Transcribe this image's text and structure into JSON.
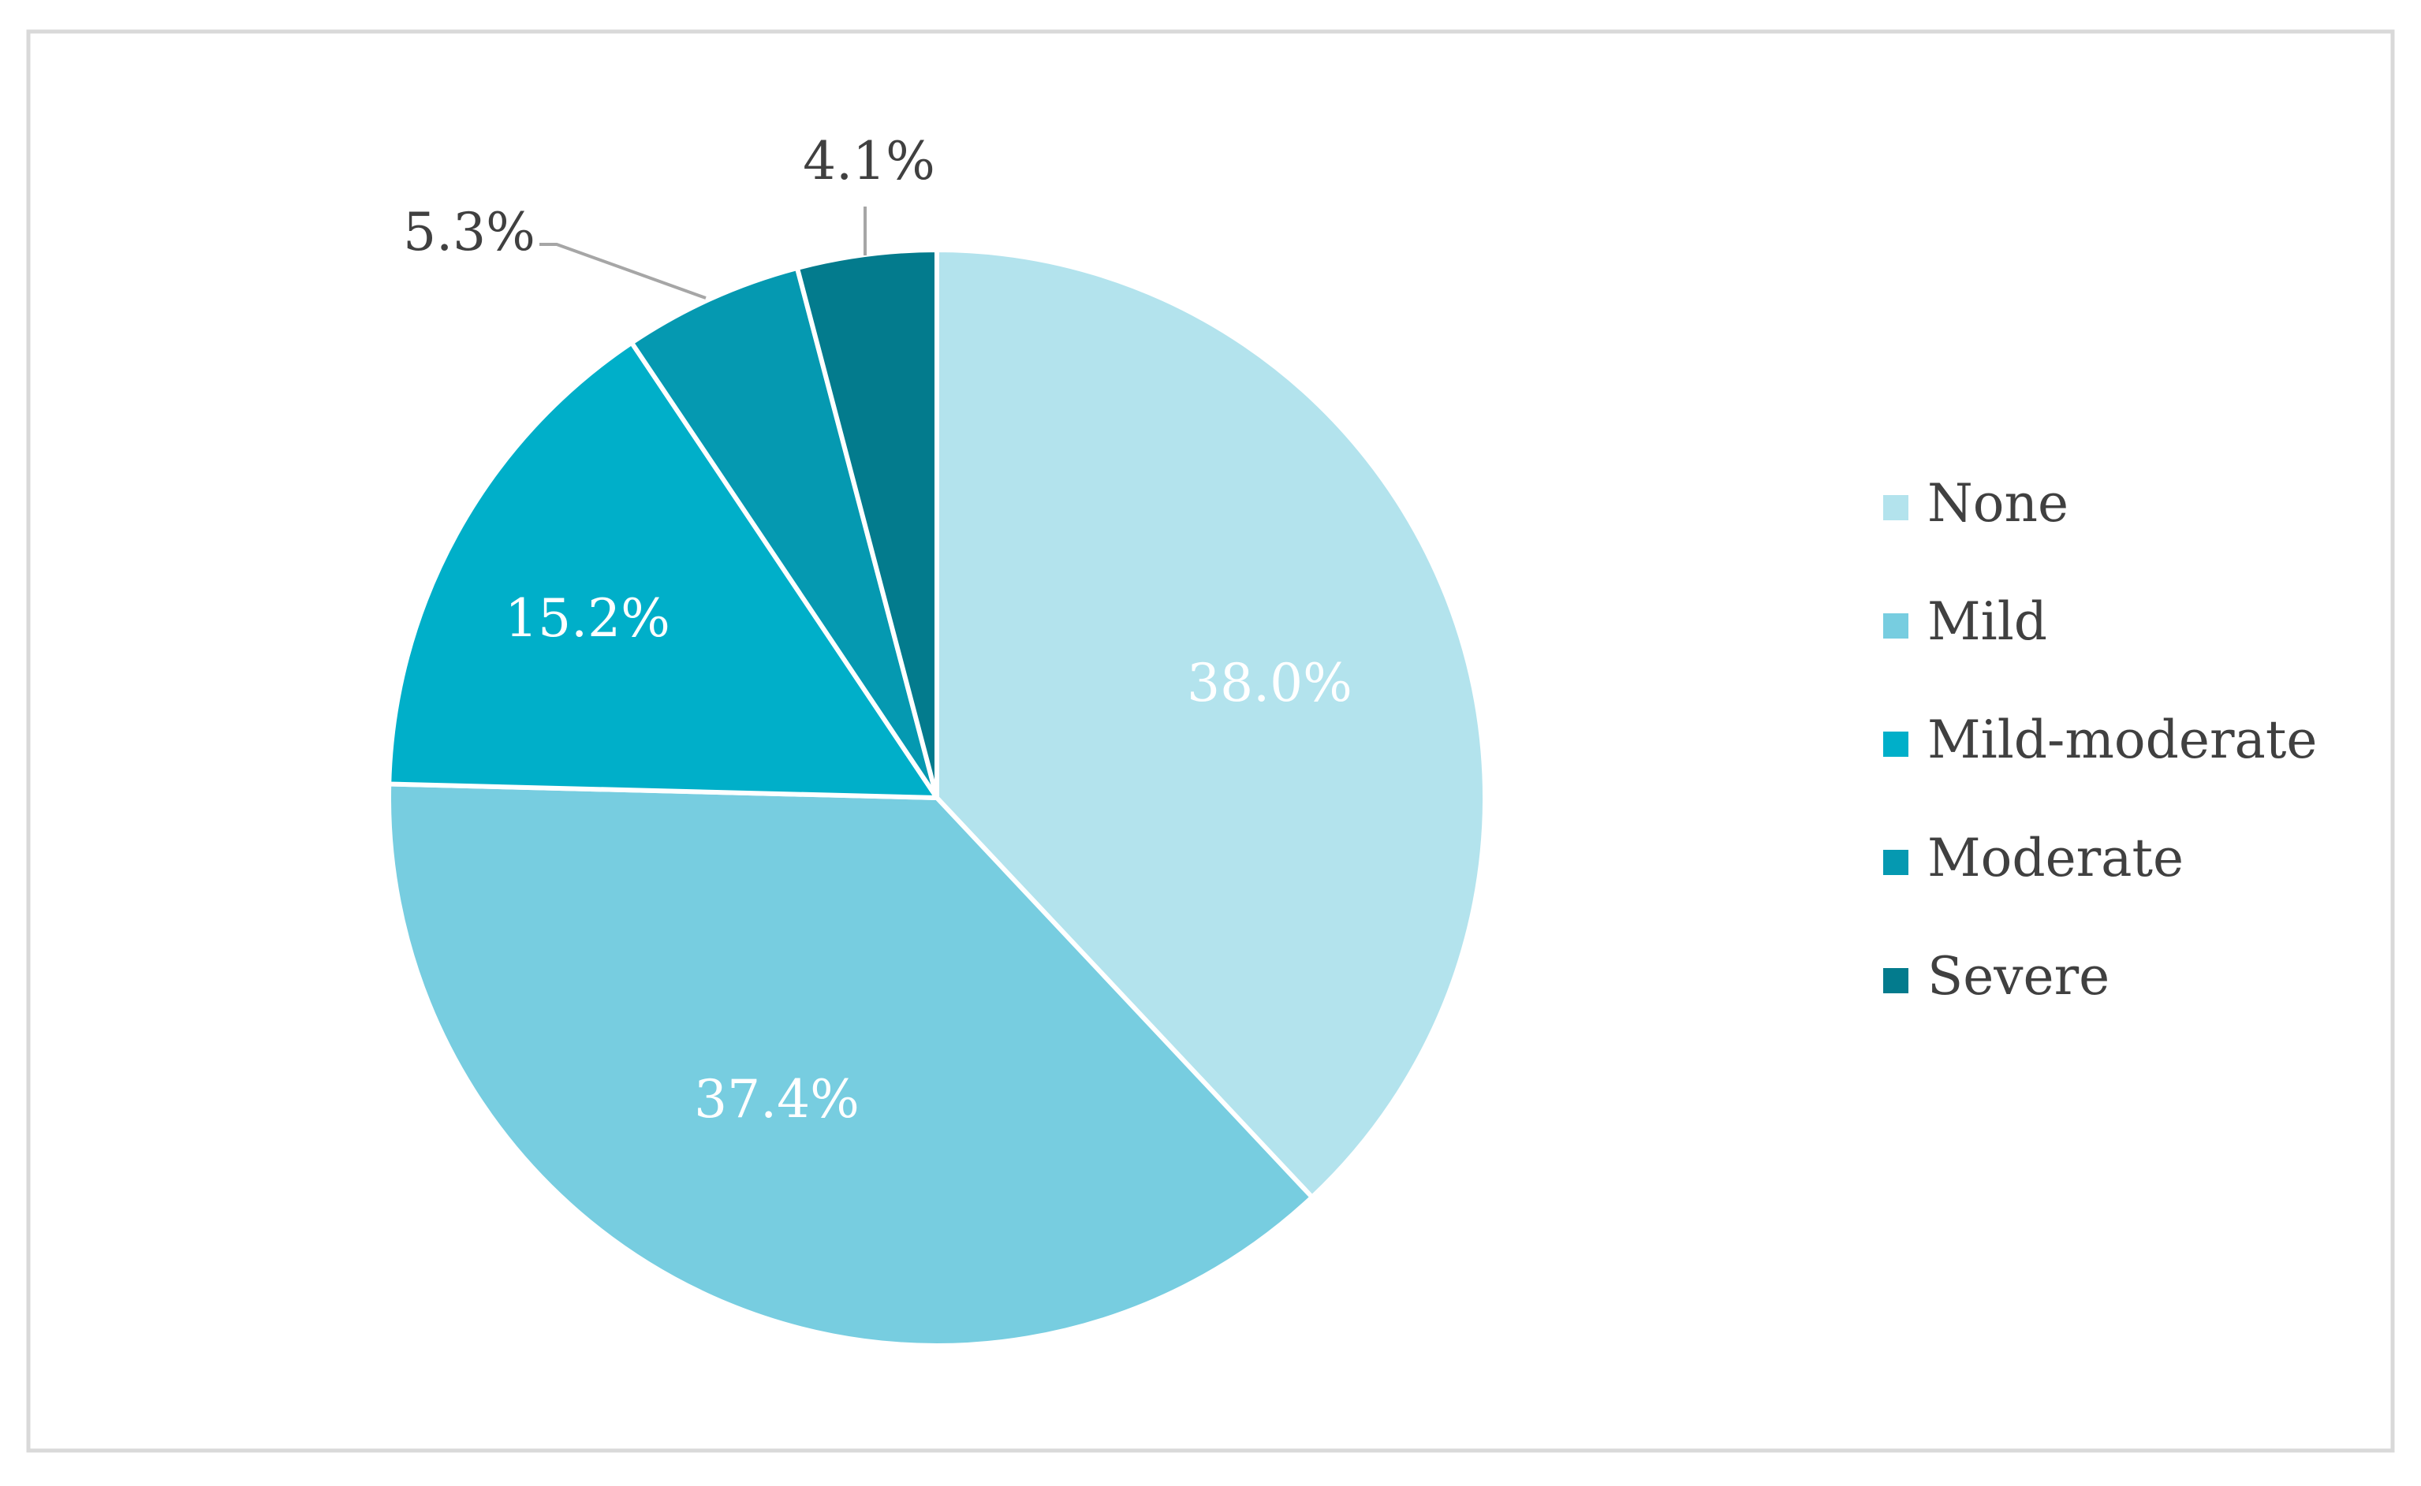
{
  "chart_data": {
    "type": "pie",
    "categories": [
      "None",
      "Mild",
      "Mild-moderate",
      "Moderate",
      "Severe"
    ],
    "values": [
      38.0,
      37.4,
      15.2,
      5.3,
      4.1
    ],
    "data_labels": [
      "38.0%",
      "37.4%",
      "15.2%",
      "5.3%",
      "4.1%"
    ],
    "colors": [
      "#b3e3ed",
      "#77cde0",
      "#00afc9",
      "#0599b1",
      "#037b8d"
    ],
    "label_color_inside": "#ffffff",
    "label_color_outside": "#404040",
    "legend_placement": "right",
    "title": "",
    "start_angle_degrees": 0,
    "direction": "clockwise",
    "frame_color": "#d9d9d9"
  }
}
